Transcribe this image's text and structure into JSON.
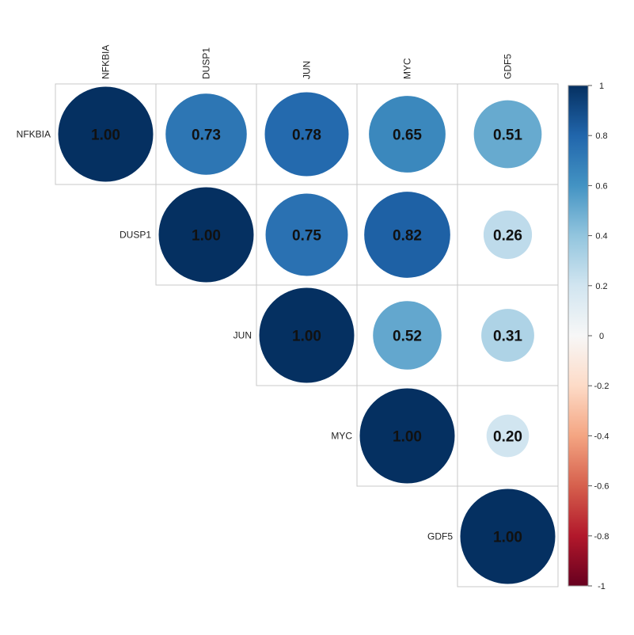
{
  "chart_data": {
    "type": "heatmap",
    "subtype": "correlation-circles-upper-triangle",
    "variables": [
      "NFKBIA",
      "DUSP1",
      "JUN",
      "MYC",
      "GDF5"
    ],
    "matrix": [
      [
        1.0,
        0.73,
        0.78,
        0.65,
        0.51
      ],
      [
        0.73,
        1.0,
        0.75,
        0.82,
        0.26
      ],
      [
        0.78,
        0.75,
        1.0,
        0.52,
        0.31
      ],
      [
        0.65,
        0.82,
        0.52,
        1.0,
        0.2
      ],
      [
        0.51,
        0.26,
        0.31,
        0.2,
        1.0
      ]
    ],
    "value_labels": [
      [
        "1.00",
        "0.73",
        "0.78",
        "0.65",
        "0.51"
      ],
      [
        "",
        "1.00",
        "0.75",
        "0.82",
        "0.26"
      ],
      [
        "",
        "",
        "1.00",
        "0.52",
        "0.31"
      ],
      [
        "",
        "",
        "",
        "1.00",
        "0.20"
      ],
      [
        "",
        "",
        "",
        "",
        "1.00"
      ]
    ],
    "colorbar": {
      "range": [
        -1,
        1
      ],
      "ticks": [
        "1",
        "0.8",
        "0.6",
        "0.4",
        "0.2",
        "0",
        "-0.2",
        "-0.4",
        "-0.6",
        "-0.8",
        "-1"
      ],
      "colors": [
        "#67001f",
        "#b2182b",
        "#d6604d",
        "#f4a582",
        "#fddbc7",
        "#f7f7f7",
        "#d1e5f0",
        "#92c5de",
        "#4393c3",
        "#2166ac",
        "#053061"
      ],
      "placement": "right"
    },
    "title": "",
    "xlabel": "",
    "ylabel": ""
  }
}
